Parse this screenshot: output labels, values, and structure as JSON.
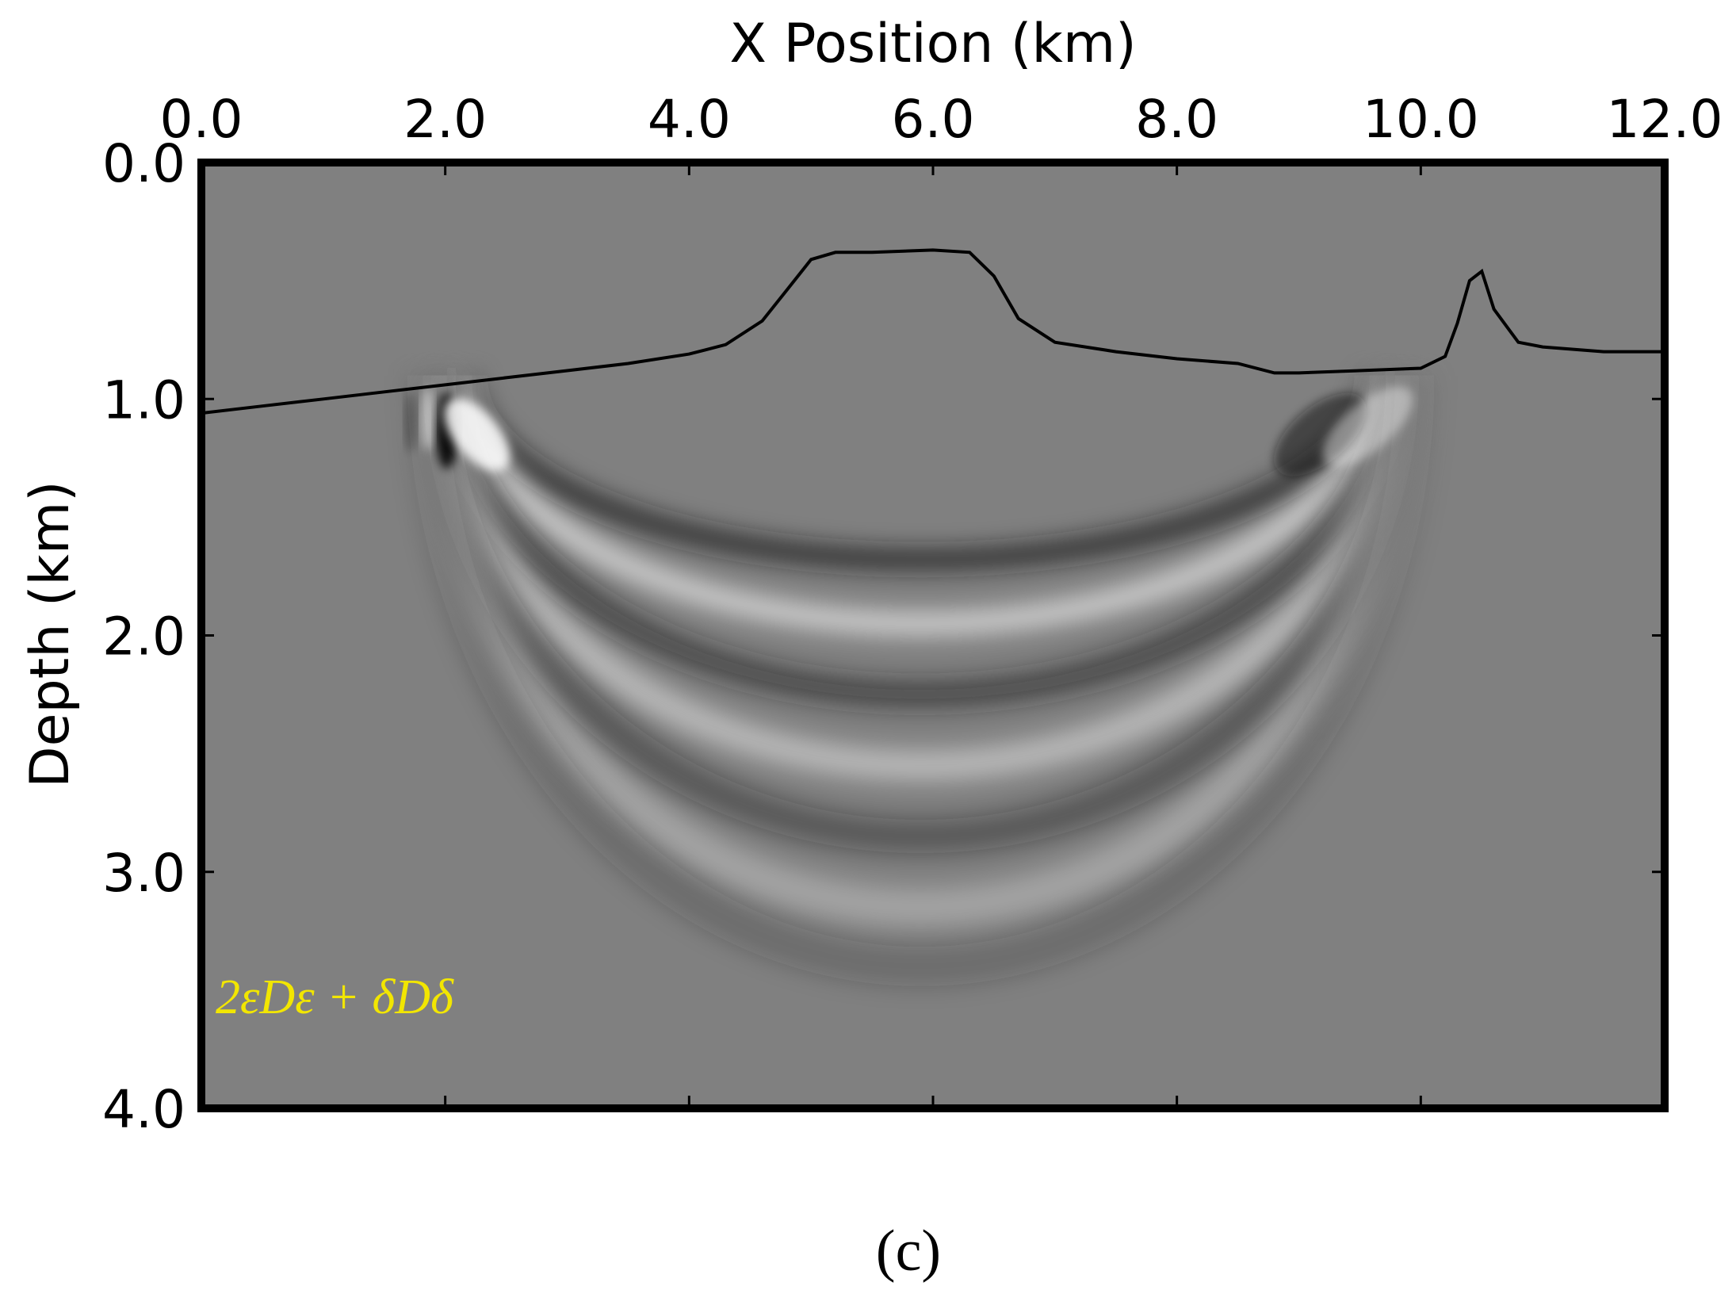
{
  "chart_data": {
    "type": "heatmap",
    "title": "",
    "xlabel": "X Position (km)",
    "ylabel": "Depth (km)",
    "xlim": [
      0.0,
      12.0
    ],
    "ylim": [
      0.0,
      4.0
    ],
    "x_axis_position": "top",
    "y_inverted": true,
    "xticks": [
      "0.0",
      "2.0",
      "4.0",
      "6.0",
      "8.0",
      "10.0",
      "12.0"
    ],
    "yticks": [
      "0.0",
      "1.0",
      "2.0",
      "3.0",
      "4.0"
    ],
    "grid": false,
    "colormap": "grayscale",
    "background_color": "#808080",
    "annotation": "2εDε + δDδ",
    "annotation_color": "#f2e600",
    "interface_line": {
      "color": "#000000",
      "x": [
        0.0,
        0.5,
        1.0,
        1.5,
        2.0,
        2.5,
        3.0,
        3.5,
        4.0,
        4.3,
        4.6,
        4.8,
        5.0,
        5.2,
        5.5,
        6.0,
        6.3,
        6.5,
        6.7,
        7.0,
        7.5,
        8.0,
        8.5,
        8.8,
        9.0,
        9.5,
        10.0,
        10.2,
        10.3,
        10.4,
        10.5,
        10.6,
        10.8,
        11.0,
        11.5,
        12.0
      ],
      "y": [
        1.06,
        1.03,
        1.0,
        0.97,
        0.94,
        0.91,
        0.88,
        0.85,
        0.81,
        0.77,
        0.67,
        0.54,
        0.41,
        0.38,
        0.38,
        0.37,
        0.38,
        0.48,
        0.66,
        0.76,
        0.8,
        0.83,
        0.85,
        0.89,
        0.89,
        0.88,
        0.87,
        0.82,
        0.68,
        0.5,
        0.46,
        0.62,
        0.76,
        0.78,
        0.8,
        0.8
      ]
    },
    "wavefront_arcs": [
      {
        "center_x": 5.9,
        "center_y": 0.9,
        "radius_x": 3.7,
        "radius_y": 0.78,
        "polarity": "dark"
      },
      {
        "center_x": 5.9,
        "center_y": 0.9,
        "radius_x": 3.75,
        "radius_y": 1.05,
        "polarity": "light"
      },
      {
        "center_x": 5.9,
        "center_y": 0.9,
        "radius_x": 3.85,
        "radius_y": 1.35,
        "polarity": "dark"
      },
      {
        "center_x": 5.9,
        "center_y": 0.9,
        "radius_x": 3.9,
        "radius_y": 1.65,
        "polarity": "light"
      },
      {
        "center_x": 5.9,
        "center_y": 0.9,
        "radius_x": 3.95,
        "radius_y": 1.95,
        "polarity": "dark"
      },
      {
        "center_x": 5.9,
        "center_y": 0.9,
        "radius_x": 4.0,
        "radius_y": 2.25,
        "polarity": "light"
      },
      {
        "center_x": 5.9,
        "center_y": 0.9,
        "radius_x": 4.05,
        "radius_y": 2.5,
        "polarity": "dark"
      }
    ],
    "source_point": {
      "x": 2.0,
      "y": 0.95
    }
  },
  "caption": "(c)"
}
